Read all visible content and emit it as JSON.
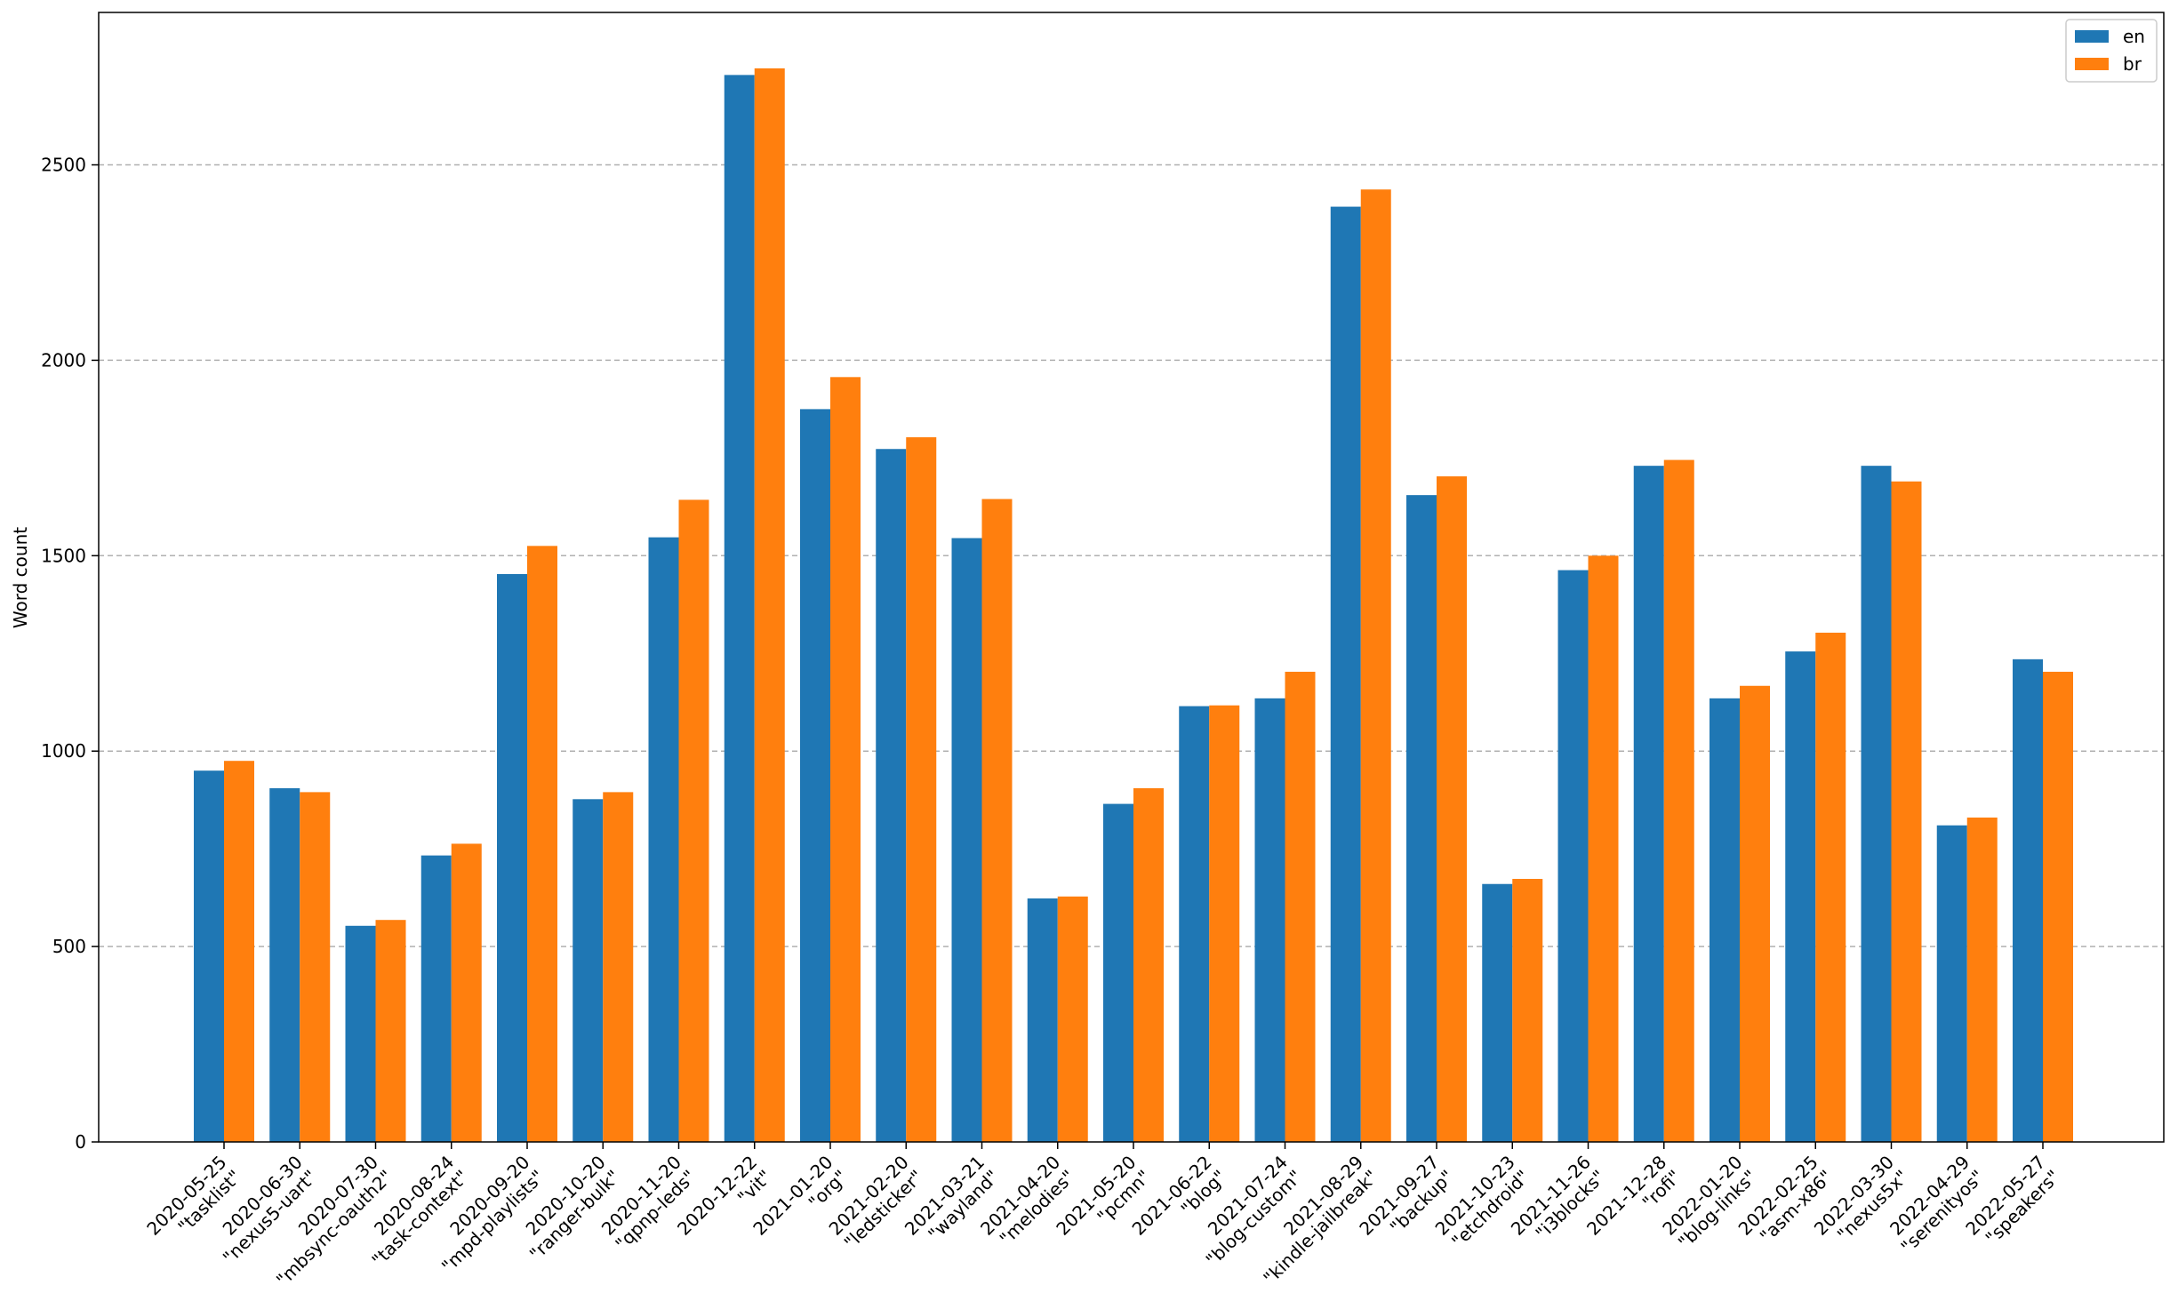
{
  "chart_data": {
    "type": "bar",
    "title": "",
    "xlabel": "",
    "ylabel": "Word count",
    "ylim": [
      0,
      2890
    ],
    "yticks": [
      0,
      500,
      1000,
      1500,
      2000,
      2500
    ],
    "grid": "y-dashed",
    "legend_position": "top-right",
    "categories": [
      [
        "2020-05-25",
        "\"tasklist\""
      ],
      [
        "2020-06-30",
        "\"nexus5-uart\""
      ],
      [
        "2020-07-30",
        "\"mbsync-oauth2\""
      ],
      [
        "2020-08-24",
        "\"task-context\""
      ],
      [
        "2020-09-20",
        "\"mpd-playlists\""
      ],
      [
        "2020-10-20",
        "\"ranger-bulk\""
      ],
      [
        "2020-11-20",
        "\"qpnp-leds\""
      ],
      [
        "2020-12-22",
        "\"vit\""
      ],
      [
        "2021-01-20",
        "\"org\""
      ],
      [
        "2021-02-20",
        "\"ledsticker\""
      ],
      [
        "2021-03-21",
        "\"wayland\""
      ],
      [
        "2021-04-20",
        "\"melodies\""
      ],
      [
        "2021-05-20",
        "\"pcmn\""
      ],
      [
        "2021-06-22",
        "\"blog\""
      ],
      [
        "2021-07-24",
        "\"blog-custom\""
      ],
      [
        "2021-08-29",
        "\"kindle-jailbreak\""
      ],
      [
        "2021-09-27",
        "\"backup\""
      ],
      [
        "2021-10-23",
        "\"etchdroid\""
      ],
      [
        "2021-11-26",
        "\"i3blocks\""
      ],
      [
        "2021-12-28",
        "\"rofi\""
      ],
      [
        "2022-01-20",
        "\"blog-links\""
      ],
      [
        "2022-02-25",
        "\"asm-x86\""
      ],
      [
        "2022-03-30",
        "\"nexus5x\""
      ],
      [
        "2022-04-29",
        "\"serenityos\""
      ],
      [
        "2022-05-27",
        "\"speakers\""
      ]
    ],
    "series": [
      {
        "name": "en",
        "color": "#1f77b4",
        "values": [
          950,
          905,
          553,
          733,
          1453,
          877,
          1547,
          2730,
          1875,
          1773,
          1545,
          623,
          865,
          1115,
          1135,
          2393,
          1655,
          660,
          1463,
          1730,
          1135,
          1255,
          1730,
          810,
          1235
        ]
      },
      {
        "name": "br",
        "color": "#ff7f0e",
        "values": [
          975,
          895,
          568,
          763,
          1525,
          895,
          1643,
          2747,
          1957,
          1803,
          1645,
          628,
          905,
          1117,
          1203,
          2437,
          1703,
          673,
          1500,
          1745,
          1167,
          1303,
          1690,
          830,
          1203
        ]
      }
    ]
  }
}
